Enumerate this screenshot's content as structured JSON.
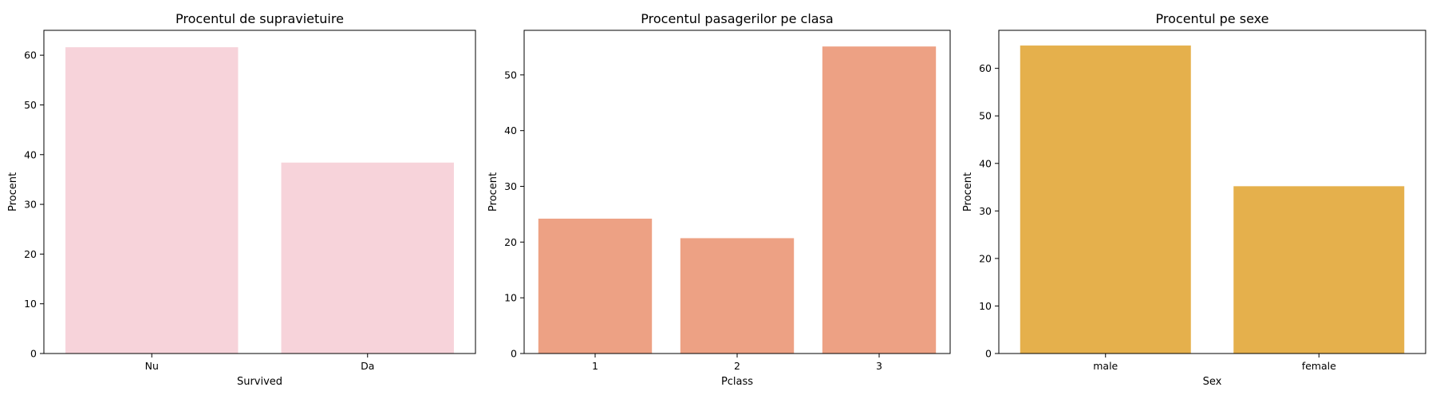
{
  "chart_data": [
    {
      "type": "bar",
      "title": "Procentul de supravietuire",
      "xlabel": "Survived",
      "ylabel": "Procent",
      "categories": [
        "Nu",
        "Da"
      ],
      "values": [
        61.6,
        38.4
      ],
      "ylim": [
        0,
        65
      ],
      "yticks": [
        0,
        10,
        20,
        30,
        40,
        50,
        60
      ],
      "color": "#f7d3da",
      "grid": false
    },
    {
      "type": "bar",
      "title": "Procentul pasagerilor pe clasa",
      "xlabel": "Pclass",
      "ylabel": "Procent",
      "categories": [
        "1",
        "2",
        "3"
      ],
      "values": [
        24.2,
        20.7,
        55.1
      ],
      "ylim": [
        0,
        58
      ],
      "yticks": [
        0,
        10,
        20,
        30,
        40,
        50
      ],
      "color": "#eda184",
      "grid": false
    },
    {
      "type": "bar",
      "title": "Procentul pe sexe",
      "xlabel": "Sex",
      "ylabel": "Procent",
      "categories": [
        "male",
        "female"
      ],
      "values": [
        64.8,
        35.2
      ],
      "ylim": [
        0,
        68
      ],
      "yticks": [
        0,
        10,
        20,
        30,
        40,
        50,
        60
      ],
      "color": "#e5b04c",
      "grid": false
    }
  ]
}
